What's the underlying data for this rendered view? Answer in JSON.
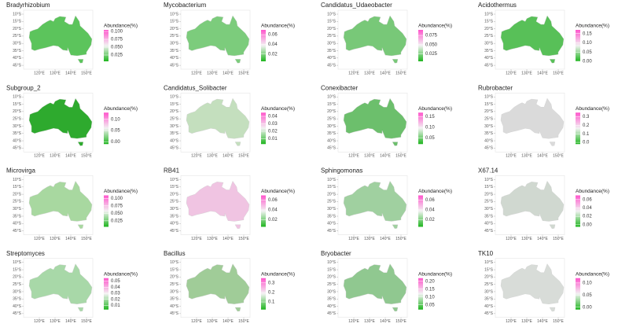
{
  "axes": {
    "lat_ticks": [
      {
        "value": 10,
        "label": "10°S"
      },
      {
        "value": 15,
        "label": "15°S"
      },
      {
        "value": 20,
        "label": "20°S"
      },
      {
        "value": 25,
        "label": "25°S"
      },
      {
        "value": 30,
        "label": "30°S"
      },
      {
        "value": 35,
        "label": "35°S"
      },
      {
        "value": 40,
        "label": "40°S"
      },
      {
        "value": 45,
        "label": "45°S"
      }
    ],
    "lon_ticks": [
      {
        "value": 120,
        "label": "120°E"
      },
      {
        "value": 130,
        "label": "130°E"
      },
      {
        "value": 140,
        "label": "140°E"
      },
      {
        "value": 150,
        "label": "150°E"
      }
    ]
  },
  "legend_title": "Abundance(%)",
  "legend_colors": {
    "low": "#1fb51f",
    "mid": "#f2f2f2",
    "high": "#ff55cc"
  },
  "panels": [
    {
      "title": "Bradyrhizobium",
      "color": "#5cc45c",
      "lim": [
        0.005,
        0.105
      ],
      "ticks": [
        {
          "value": 0.1,
          "label": "0.100"
        },
        0.075,
        {
          "value": 0.05,
          "label": "0.050"
        },
        0.025
      ]
    },
    {
      "title": "Mycobacterium",
      "color": "#7ccc7c",
      "lim": [
        0.005,
        0.07
      ],
      "ticks": [
        0.06,
        0.04,
        0.02
      ]
    },
    {
      "title": "Candidatus_Udaeobacter",
      "color": "#78c878",
      "lim": [
        0.005,
        0.09
      ],
      "ticks": [
        0.075,
        {
          "value": 0.05,
          "label": "0.050"
        },
        0.025
      ]
    },
    {
      "title": "Acidothermus",
      "color": "#58c058",
      "lim": [
        0,
        0.17
      ],
      "ticks": [
        0.15,
        {
          "value": 0.1,
          "label": "0.10"
        },
        0.05,
        {
          "value": 0,
          "label": "0.00"
        }
      ]
    },
    {
      "title": "Subgroup_2",
      "color": "#2eaa2e",
      "lim": [
        -0.01,
        0.13
      ],
      "ticks": [
        {
          "value": 0.1,
          "label": "0.10"
        },
        0.05,
        {
          "value": 0,
          "label": "0.00"
        }
      ]
    },
    {
      "title": "Candidatus_Solibacter",
      "color": "#c4dfbe",
      "lim": [
        0.003,
        0.045
      ],
      "ticks": [
        0.04,
        0.03,
        0.02,
        0.01
      ]
    },
    {
      "title": "Conexibacter",
      "color": "#6cbf6c",
      "lim": [
        0.02,
        0.17
      ],
      "ticks": [
        0.15,
        {
          "value": 0.1,
          "label": "0.10"
        },
        0.05
      ]
    },
    {
      "title": "Rubrobacter",
      "color": "#dadada",
      "lim": [
        -0.02,
        0.35
      ],
      "ticks": [
        0.3,
        0.2,
        0.1,
        {
          "value": 0,
          "label": "0.0"
        }
      ]
    },
    {
      "title": "Microvirga",
      "color": "#a8d8a0",
      "lim": [
        0.005,
        0.11
      ],
      "ticks": [
        {
          "value": 0.1,
          "label": "0.100"
        },
        0.075,
        {
          "value": 0.05,
          "label": "0.050"
        },
        0.025
      ]
    },
    {
      "title": "RB41",
      "color": "#f0c4e2",
      "lim": [
        0.005,
        0.07
      ],
      "ticks": [
        0.06,
        0.04,
        0.02
      ]
    },
    {
      "title": "Sphingomonas",
      "color": "#a0d0a0",
      "lim": [
        0.005,
        0.07
      ],
      "ticks": [
        0.06,
        0.04,
        0.02
      ]
    },
    {
      "title": "X67.14",
      "color": "#d0d8d0",
      "lim": [
        -0.005,
        0.07
      ],
      "ticks": [
        0.06,
        0.04,
        0.02,
        {
          "value": 0,
          "label": "0.00"
        }
      ]
    },
    {
      "title": "Streptomyces",
      "color": "#a8d8a8",
      "lim": [
        0.003,
        0.055
      ],
      "ticks": [
        0.05,
        0.04,
        0.03,
        0.02,
        0.01
      ]
    },
    {
      "title": "Bacillus",
      "color": "#a0cc98",
      "lim": [
        0.02,
        0.35
      ],
      "ticks": [
        0.3,
        0.2,
        0.1
      ]
    },
    {
      "title": "Bryobacter",
      "color": "#90c890",
      "lim": [
        0.02,
        0.22
      ],
      "ticks": [
        {
          "value": 0.2,
          "label": "0.20"
        },
        0.15,
        {
          "value": 0.1,
          "label": "0.10"
        },
        0.05
      ]
    },
    {
      "title": "TK10",
      "color": "#d8dcd8",
      "lim": [
        -0.01,
        0.12
      ],
      "ticks": [
        {
          "value": 0.1,
          "label": "0.10"
        },
        0.05,
        {
          "value": 0,
          "label": "0.00"
        }
      ]
    }
  ]
}
